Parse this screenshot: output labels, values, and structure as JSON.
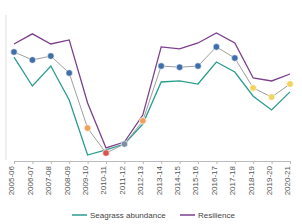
{
  "chart_data": {
    "type": "line",
    "categories": [
      "2005-06",
      "2006-07",
      "2007-08",
      "2008-09",
      "2009-10",
      "2010-11",
      "2011-12",
      "2012-13",
      "2013-14",
      "2014-15",
      "2015-16",
      "2016-17",
      "2017-18",
      "2018-19",
      "2019-20",
      "2020-21"
    ],
    "ylim": [
      0,
      100
    ],
    "tick_labels": "x",
    "grid": false,
    "legend": "bottom",
    "series": [
      {
        "name": "Seagrass abundance",
        "color": "#2a9d8f",
        "line_style": "solid",
        "values": [
          71,
          51,
          64.8,
          41.4,
          3.4,
          7,
          11,
          24.8,
          53.8,
          54.5,
          52.4,
          67.6,
          60.7,
          44,
          34.5,
          47
        ]
      },
      {
        "name": "Resilience",
        "color": "#7b3f8c",
        "line_style": "solid",
        "values": [
          80,
          87,
          80,
          82.8,
          39.3,
          8.3,
          12.4,
          31,
          78,
          76.6,
          80.7,
          87.6,
          80.7,
          56.6,
          54.5,
          59.3
        ]
      },
      {
        "color": "#9e9e9e",
        "line_style": "solid",
        "marker": "circle",
        "colors": [
          "#3f6faa",
          "#3f6faa",
          "#3f6faa",
          "#3f6faa",
          "#f0a05a",
          "#d9534f",
          "#7d8fa8",
          "#f0a05a",
          "#3f6faa",
          "#3f6faa",
          "#3f6faa",
          "#3f6faa",
          "#3f6faa",
          "#f2d45c",
          "#f2d45c",
          "#f2d45c"
        ],
        "values": [
          74.5,
          69,
          71.7,
          60,
          22,
          4.8,
          11,
          27,
          64.8,
          64,
          64.8,
          78,
          70.3,
          49.7,
          43.4,
          52.4
        ]
      }
    ]
  }
}
